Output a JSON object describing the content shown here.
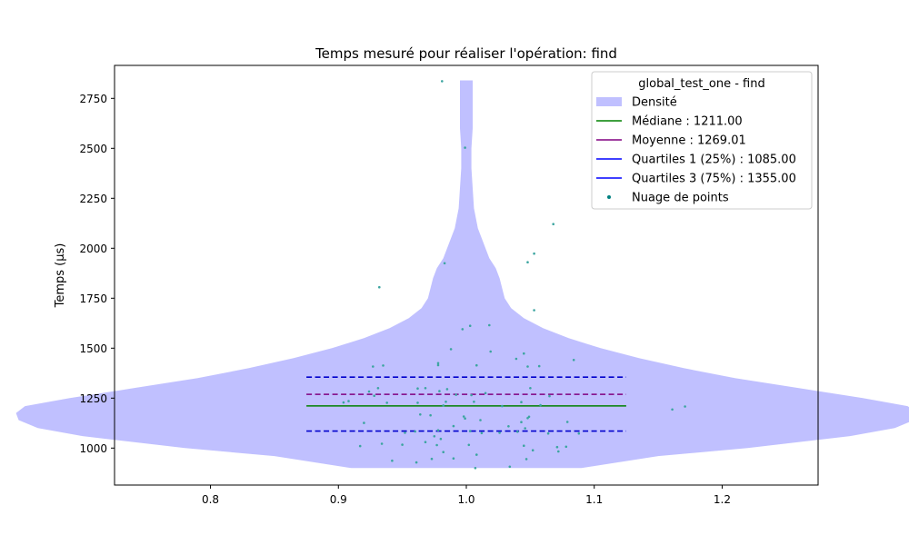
{
  "chart_data": {
    "type": "violin",
    "title": "Temps mesuré pour réaliser l'opération: find",
    "xlabel": "",
    "ylabel": "Temps (µs)",
    "xlim": [
      0.725,
      1.275
    ],
    "ylim": [
      815,
      2915
    ],
    "x_ticks": [
      0.8,
      0.9,
      1.0,
      1.1,
      1.2
    ],
    "x_tick_labels": [
      "0.8",
      "0.9",
      "1.0",
      "1.1",
      "1.2"
    ],
    "y_ticks": [
      1000,
      1250,
      1500,
      1750,
      2000,
      2250,
      2500,
      2750
    ],
    "y_tick_labels": [
      "1000",
      "1250",
      "1500",
      "1750",
      "2000",
      "2250",
      "2500",
      "2750"
    ],
    "grid": false,
    "legend": {
      "placement": "top-right",
      "title": "global_test_one - find",
      "entries": [
        {
          "label": "Densité",
          "kind": "patch",
          "color": "#c0c0ff"
        },
        {
          "label": "Médiane : 1211.00",
          "kind": "line",
          "style": "solid",
          "color": "#008000"
        },
        {
          "label": "Moyenne : 1269.01",
          "kind": "line",
          "style": "solid",
          "color": "#800080"
        },
        {
          "label": "Quartiles 1 (25%) : 1085.00",
          "kind": "line",
          "style": "solid",
          "color": "#0000ff"
        },
        {
          "label": "Quartiles 3 (75%) : 1355.00",
          "kind": "line",
          "style": "solid",
          "color": "#0000ff"
        },
        {
          "label": "Nuage de points",
          "kind": "marker",
          "color": "#008080"
        }
      ]
    },
    "violin": {
      "position": 1.0,
      "color": "#c0c0ff",
      "y_min": 900,
      "y_max": 2840,
      "profile": [
        [
          900,
          0.09
        ],
        [
          960,
          0.15
        ],
        [
          1000,
          0.22
        ],
        [
          1060,
          0.3
        ],
        [
          1100,
          0.335
        ],
        [
          1140,
          0.35
        ],
        [
          1175,
          0.352
        ],
        [
          1210,
          0.345
        ],
        [
          1250,
          0.31
        ],
        [
          1300,
          0.26
        ],
        [
          1350,
          0.21
        ],
        [
          1400,
          0.17
        ],
        [
          1450,
          0.135
        ],
        [
          1500,
          0.105
        ],
        [
          1550,
          0.08
        ],
        [
          1600,
          0.06
        ],
        [
          1650,
          0.045
        ],
        [
          1700,
          0.035
        ],
        [
          1750,
          0.03
        ],
        [
          1800,
          0.028
        ],
        [
          1850,
          0.026
        ],
        [
          1900,
          0.023
        ],
        [
          1950,
          0.018
        ],
        [
          2000,
          0.015
        ],
        [
          2050,
          0.012
        ],
        [
          2100,
          0.009
        ],
        [
          2200,
          0.006
        ],
        [
          2300,
          0.005
        ],
        [
          2400,
          0.004
        ],
        [
          2500,
          0.004
        ],
        [
          2600,
          0.005
        ],
        [
          2700,
          0.005
        ],
        [
          2800,
          0.005
        ],
        [
          2840,
          0.005
        ]
      ]
    },
    "stat_lines": [
      {
        "name": "median",
        "y": 1211.0,
        "color": "#008000",
        "style": "solid"
      },
      {
        "name": "mean",
        "y": 1269.01,
        "color": "#800080",
        "style": "dashed"
      },
      {
        "name": "q1",
        "y": 1085.0,
        "color": "#0000cc",
        "style": "dashed"
      },
      {
        "name": "q3",
        "y": 1355.0,
        "color": "#0000cc",
        "style": "dashed"
      }
    ],
    "stat_line_x_range": [
      0.875,
      1.125
    ],
    "points_color": "#3ca5a0",
    "points": [
      [
        0.981,
        2836
      ],
      [
        0.999,
        2503
      ],
      [
        1.068,
        2121
      ],
      [
        1.053,
        1973
      ],
      [
        1.048,
        1930
      ],
      [
        0.983,
        1925
      ],
      [
        0.932,
        1805
      ],
      [
        1.053,
        1690
      ],
      [
        1.018,
        1615
      ],
      [
        1.003,
        1612
      ],
      [
        0.997,
        1595
      ],
      [
        0.988,
        1495
      ],
      [
        1.019,
        1483
      ],
      [
        1.045,
        1473
      ],
      [
        1.039,
        1447
      ],
      [
        1.084,
        1441
      ],
      [
        0.978,
        1425
      ],
      [
        0.978,
        1415
      ],
      [
        0.935,
        1413
      ],
      [
        0.927,
        1408
      ],
      [
        1.008,
        1414
      ],
      [
        1.048,
        1408
      ],
      [
        1.057,
        1410
      ],
      [
        0.968,
        1300
      ],
      [
        0.931,
        1300
      ],
      [
        1.05,
        1300
      ],
      [
        0.962,
        1298
      ],
      [
        0.985,
        1295
      ],
      [
        0.979,
        1285
      ],
      [
        0.924,
        1283
      ],
      [
        0.928,
        1262
      ],
      [
        0.992,
        1267
      ],
      [
        1.004,
        1265
      ],
      [
        1.015,
        1275
      ],
      [
        1.065,
        1260
      ],
      [
        0.962,
        1227
      ],
      [
        0.938,
        1227
      ],
      [
        0.984,
        1232
      ],
      [
        1.006,
        1232
      ],
      [
        1.043,
        1230
      ],
      [
        0.904,
        1228
      ],
      [
        0.908,
        1235
      ],
      [
        0.982,
        1213
      ],
      [
        1.028,
        1210
      ],
      [
        1.058,
        1215
      ],
      [
        1.161,
        1193
      ],
      [
        1.171,
        1208
      ],
      [
        0.964,
        1168
      ],
      [
        0.972,
        1164
      ],
      [
        0.998,
        1158
      ],
      [
        0.999,
        1148
      ],
      [
        1.011,
        1140
      ],
      [
        1.048,
        1150
      ],
      [
        1.049,
        1157
      ],
      [
        1.079,
        1131
      ],
      [
        1.043,
        1130
      ],
      [
        0.92,
        1126
      ],
      [
        0.99,
        1110
      ],
      [
        1.033,
        1109
      ],
      [
        1.046,
        1099
      ],
      [
        0.978,
        1089
      ],
      [
        1.003,
        1085
      ],
      [
        1.012,
        1075
      ],
      [
        0.952,
        1077
      ],
      [
        0.96,
        1083
      ],
      [
        1.026,
        1077
      ],
      [
        1.04,
        1082
      ],
      [
        1.064,
        1073
      ],
      [
        1.088,
        1073
      ],
      [
        0.975,
        1059
      ],
      [
        0.98,
        1046
      ],
      [
        0.968,
        1030
      ],
      [
        0.977,
        1015
      ],
      [
        0.934,
        1022
      ],
      [
        0.95,
        1017
      ],
      [
        0.917,
        1010
      ],
      [
        1.002,
        1016
      ],
      [
        1.045,
        1012
      ],
      [
        1.071,
        1005
      ],
      [
        1.078,
        1007
      ],
      [
        0.982,
        980
      ],
      [
        1.008,
        967
      ],
      [
        1.052,
        989
      ],
      [
        1.072,
        983
      ],
      [
        0.942,
        937
      ],
      [
        0.961,
        928
      ],
      [
        0.973,
        946
      ],
      [
        0.99,
        948
      ],
      [
        1.034,
        907
      ],
      [
        1.007,
        900
      ],
      [
        1.047,
        945
      ]
    ]
  }
}
